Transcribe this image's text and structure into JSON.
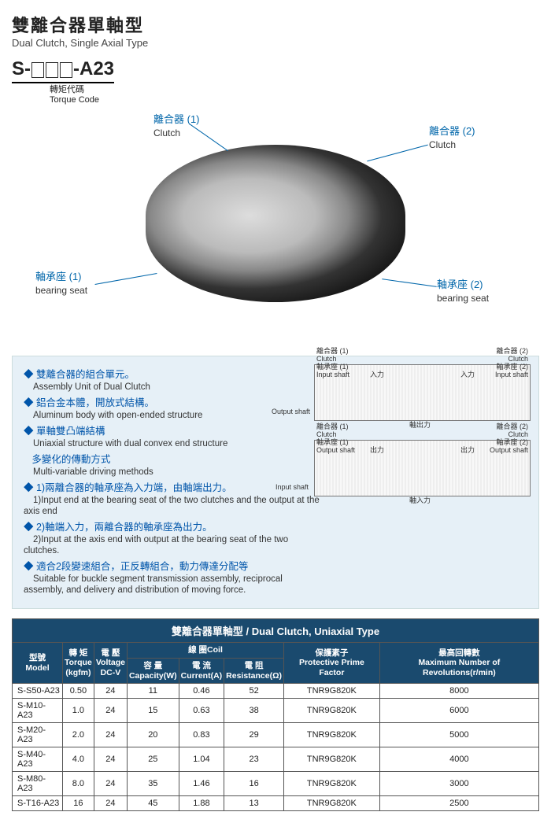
{
  "header": {
    "title_zh": "雙離合器單軸型",
    "title_en": "Dual Clutch, Single Axial Type",
    "model_prefix": "S-",
    "model_suffix": "-A23",
    "torque_zh": "轉矩代碼",
    "torque_en": "Torque Code"
  },
  "callouts": {
    "c1_zh": "離合器 (1)",
    "c1_en": "Clutch",
    "c2_zh": "離合器 (2)",
    "c2_en": "Clutch",
    "b1_zh": "軸承座 (1)",
    "b1_en": "bearing seat",
    "b2_zh": "軸承座 (2)",
    "b2_en": "bearing seat"
  },
  "bullets": [
    {
      "zh": "雙離合器的組合單元。",
      "en": "Assembly Unit of Dual Clutch"
    },
    {
      "zh": "鋁合金本體，開放式結構。",
      "en": "Aluminum body with open-ended structure"
    },
    {
      "zh": "單軸雙凸端結構",
      "en": "Uniaxial structure with dual convex end structure"
    },
    {
      "zh": "多變化的傳動方式",
      "en": "Multi-variable driving methods"
    }
  ],
  "numbered": [
    {
      "zh": "1)兩離合器的軸承座為入力端，由軸端出力。",
      "en": "1)Input end at the bearing seat of the two clutches and the output at the axis end"
    },
    {
      "zh": "2)軸端入力，兩離合器的軸承座為出力。",
      "en": "2)Input at the axis end with output at the bearing seat of the two clutches."
    }
  ],
  "final": {
    "zh": "適合2段變速組合，正反轉組合，動力傳達分配等",
    "en": "Suitable for buckle segment transmission assembly, reciprocal assembly, and delivery and distribution of moving force."
  },
  "diagram": {
    "clutch1_zh": "離合器 (1)",
    "clutch1_en": "Clutch",
    "clutch2_zh": "離合器 (2)",
    "clutch2_en": "Clutch",
    "bs1_zh": "軸承座 (1)",
    "bs1_en_in": "Input shaft",
    "bs1_en_out": "Output shaft",
    "bs2_zh": "軸承座 (2)",
    "bs2_en_in": "Input shaft",
    "bs2_en_out": "Output shaft",
    "in_zh": "入力",
    "out_zh": "出力",
    "output_shaft": "Output shaft",
    "input_shaft": "Input shaft",
    "axis_out": "軸出力",
    "axis_in": "軸入力"
  },
  "table": {
    "title_zh": "雙離合器單軸型",
    "title_en": "Dual Clutch, Uniaxial Type",
    "headers": {
      "model_zh": "型號",
      "model_en": "Model",
      "torque_zh": "轉 矩",
      "torque_en": "Torque",
      "torque_unit": "(kgfm)",
      "voltage_zh": "電 壓",
      "voltage_en": "Voltage",
      "voltage_unit": "DC-V",
      "coil_zh": "線 圈",
      "coil_en": "Coil",
      "cap_zh": "容 量",
      "cap_en": "Capacity(W)",
      "cur_zh": "電 流",
      "cur_en": "Current(A)",
      "res_zh": "電 阻",
      "res_en": "Resistance(Ω)",
      "prime_zh": "保護素子",
      "prime_en": "Protective Prime Factor",
      "rev_zh": "最高回轉數",
      "rev_en": "Maximum Number of Revolutions(r/min)"
    },
    "rows": [
      {
        "model": "S-S50-A23",
        "torque": "0.50",
        "voltage": "24",
        "cap": "11",
        "cur": "0.46",
        "res": "52",
        "prime": "TNR9G820K",
        "rev": "8000"
      },
      {
        "model": "S-M10-A23",
        "torque": "1.0",
        "voltage": "24",
        "cap": "15",
        "cur": "0.63",
        "res": "38",
        "prime": "TNR9G820K",
        "rev": "6000"
      },
      {
        "model": "S-M20-A23",
        "torque": "2.0",
        "voltage": "24",
        "cap": "20",
        "cur": "0.83",
        "res": "29",
        "prime": "TNR9G820K",
        "rev": "5000"
      },
      {
        "model": "S-M40-A23",
        "torque": "4.0",
        "voltage": "24",
        "cap": "25",
        "cur": "1.04",
        "res": "23",
        "prime": "TNR9G820K",
        "rev": "4000"
      },
      {
        "model": "S-M80-A23",
        "torque": "8.0",
        "voltage": "24",
        "cap": "35",
        "cur": "1.46",
        "res": "16",
        "prime": "TNR9G820K",
        "rev": "3000"
      },
      {
        "model": "S-T16-A23",
        "torque": "16",
        "voltage": "24",
        "cap": "45",
        "cur": "1.88",
        "res": "13",
        "prime": "TNR9G820K",
        "rev": "2500"
      }
    ]
  }
}
